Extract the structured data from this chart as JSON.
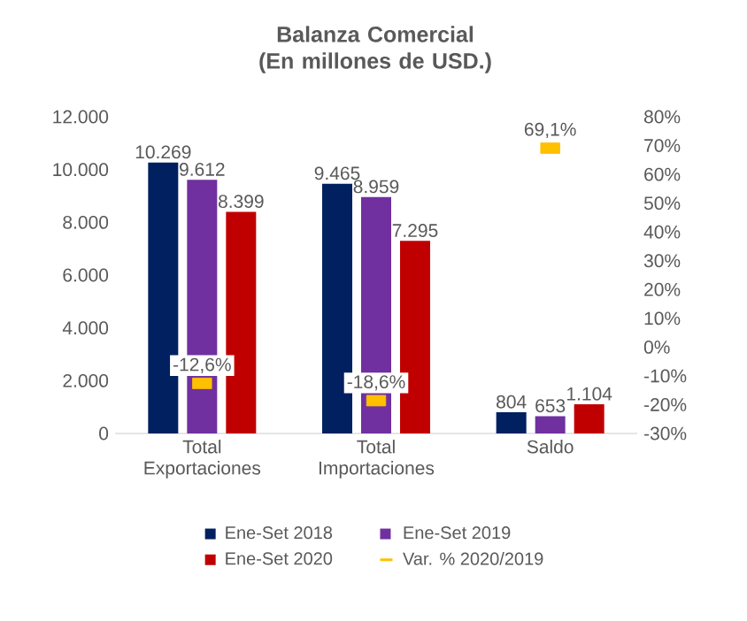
{
  "chart_data": {
    "type": "bar",
    "title": "Balanza Comercial\n(En millones de USD.)",
    "categories": [
      "Total Exportaciones",
      "Total Importaciones",
      "Saldo"
    ],
    "series": [
      {
        "name": "Ene-Set 2018",
        "color": "#002060",
        "values": [
          10269,
          9465,
          804
        ],
        "value_labels": [
          "10.269",
          "9.465",
          "804"
        ]
      },
      {
        "name": "Ene-Set 2019",
        "color": "#7030a0",
        "values": [
          9612,
          8959,
          653
        ],
        "value_labels": [
          "9.612",
          "8.959",
          "653"
        ]
      },
      {
        "name": "Ene-Set 2020",
        "color": "#c00000",
        "values": [
          8399,
          7295,
          1104
        ],
        "value_labels": [
          "8.399",
          "7.295",
          "1.104"
        ]
      },
      {
        "name": "Var. % 2020/2019",
        "type": "scatter",
        "axis": "y2",
        "color": "#ffc000",
        "values": [
          -12.6,
          -18.6,
          69.1
        ],
        "value_labels": [
          "-12,6%",
          "-18,6%",
          "69,1%"
        ]
      }
    ],
    "ylim": [
      0,
      12000
    ],
    "yticks": [
      {
        "value": 0,
        "label": "0"
      },
      {
        "value": 2000,
        "label": "2.000"
      },
      {
        "value": 4000,
        "label": "4.000"
      },
      {
        "value": 6000,
        "label": "6.000"
      },
      {
        "value": 8000,
        "label": "8.000"
      },
      {
        "value": 10000,
        "label": "10.000"
      },
      {
        "value": 12000,
        "label": "12.000"
      }
    ],
    "y2lim": [
      -30,
      80
    ],
    "y2ticks": [
      {
        "value": -30,
        "label": "-30%"
      },
      {
        "value": -20,
        "label": "-20%"
      },
      {
        "value": -10,
        "label": "-10%"
      },
      {
        "value": 0,
        "label": "0%"
      },
      {
        "value": 10,
        "label": "10%"
      },
      {
        "value": 20,
        "label": "20%"
      },
      {
        "value": 30,
        "label": "30%"
      },
      {
        "value": 40,
        "label": "40%"
      },
      {
        "value": 50,
        "label": "50%"
      },
      {
        "value": 60,
        "label": "60%"
      },
      {
        "value": 70,
        "label": "70%"
      },
      {
        "value": 80,
        "label": "80%"
      }
    ],
    "legend": "bottom",
    "grid": false
  }
}
